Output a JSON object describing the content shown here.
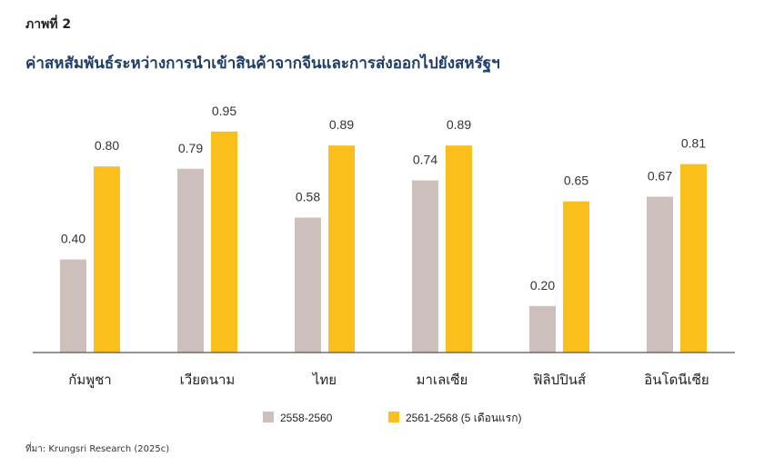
{
  "figure_label": "ภาพที่ 2",
  "source_note": "ที่มา: Krungsri Research (2025c)",
  "colors": {
    "series_1": "#cdbfbb",
    "series_2": "#fbbf1c",
    "title": "#1f3d66",
    "axis": "#555555"
  },
  "chart_data": {
    "type": "bar",
    "title": "ค่าสหสัมพันธ์ระหว่างการนำเข้าสินค้าจากจีนและการส่งออกไปยังสหรัฐฯ",
    "xlabel": "",
    "ylabel": "",
    "ylim": [
      0,
      1.0
    ],
    "grid": false,
    "legend_position": "bottom",
    "categories": [
      "กัมพูชา",
      "เวียดนาม",
      "ไทย",
      "มาเลเซีย",
      "ฟิลิปปินส์",
      "อินโดนีเซีย"
    ],
    "series": [
      {
        "name": "2558-2560",
        "values": [
          0.4,
          0.79,
          0.58,
          0.74,
          0.2,
          0.67
        ],
        "labels": [
          "0.40",
          "0.79",
          "0.58",
          "0.74",
          "0.20",
          "0.67"
        ]
      },
      {
        "name": "2561-2568 (5 เดือนแรก)",
        "values": [
          0.8,
          0.95,
          0.89,
          0.89,
          0.65,
          0.81
        ],
        "labels": [
          "0.80",
          "0.95",
          "0.89",
          "0.89",
          "0.65",
          "0.81"
        ]
      }
    ]
  }
}
